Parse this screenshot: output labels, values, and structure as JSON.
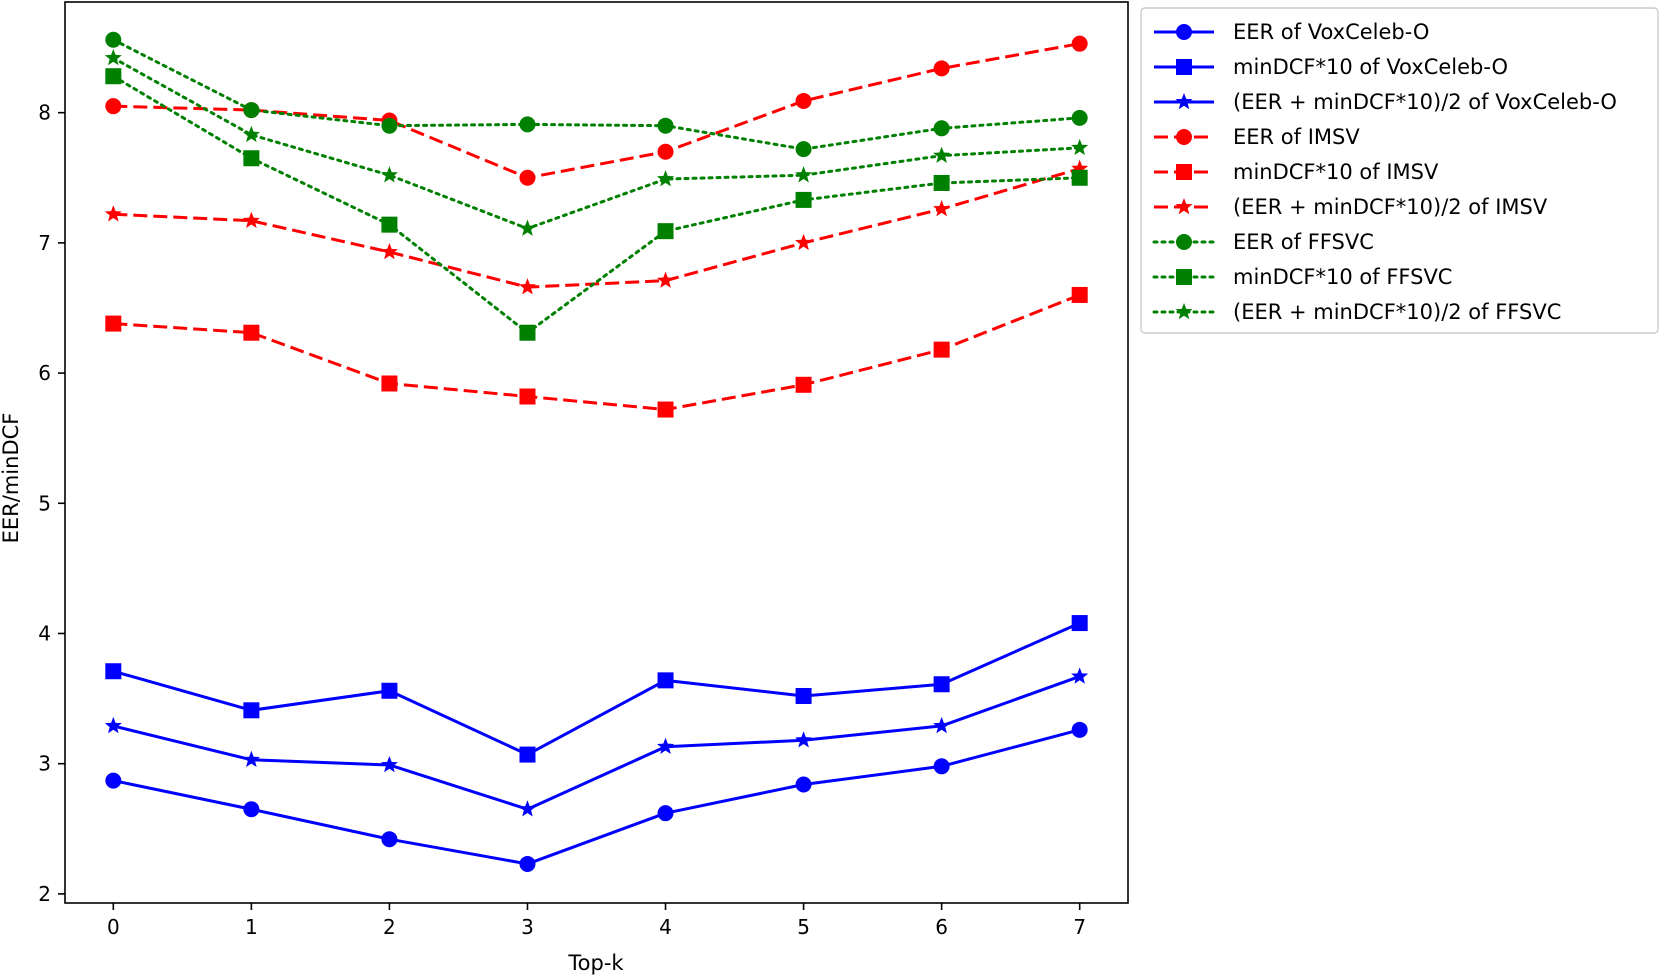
{
  "chart_data": {
    "type": "line",
    "title": "",
    "xlabel": "Top-k",
    "ylabel": "EER/minDCF",
    "x": [
      0,
      1,
      2,
      3,
      4,
      5,
      6,
      7
    ],
    "xlim": [
      -0.35,
      7.35
    ],
    "ylim": [
      1.93,
      8.85
    ],
    "xticks": [
      "0",
      "1",
      "2",
      "3",
      "4",
      "5",
      "6",
      "7"
    ],
    "yticks": [
      2,
      3,
      4,
      5,
      6,
      7,
      8
    ],
    "legend_position": "outside-top-right",
    "series": [
      {
        "name": "EER of VoxCeleb-O",
        "color": "#0000ff",
        "linestyle": "solid",
        "marker": "circle",
        "values": [
          2.87,
          2.65,
          2.42,
          2.23,
          2.62,
          2.84,
          2.98,
          3.26
        ]
      },
      {
        "name": "minDCF*10 of VoxCeleb-O",
        "color": "#0000ff",
        "linestyle": "solid",
        "marker": "square",
        "values": [
          3.71,
          3.41,
          3.56,
          3.07,
          3.64,
          3.52,
          3.61,
          4.08
        ]
      },
      {
        "name": "(EER + minDCF*10)/2 of VoxCeleb-O",
        "color": "#0000ff",
        "linestyle": "solid",
        "marker": "star",
        "values": [
          3.29,
          3.03,
          2.99,
          2.65,
          3.13,
          3.18,
          3.29,
          3.67
        ]
      },
      {
        "name": "EER of IMSV",
        "color": "#ff0000",
        "linestyle": "dashed",
        "marker": "circle",
        "values": [
          8.05,
          8.02,
          7.94,
          7.5,
          7.7,
          8.09,
          8.34,
          8.53
        ]
      },
      {
        "name": "minDCF*10 of IMSV",
        "color": "#ff0000",
        "linestyle": "dashed",
        "marker": "square",
        "values": [
          6.38,
          6.31,
          5.92,
          5.82,
          5.72,
          5.91,
          6.18,
          6.6
        ]
      },
      {
        "name": "(EER + minDCF*10)/2 of IMSV",
        "color": "#ff0000",
        "linestyle": "dashed",
        "marker": "star",
        "values": [
          7.22,
          7.17,
          6.93,
          6.66,
          6.71,
          7.0,
          7.26,
          7.57
        ]
      },
      {
        "name": "EER of FFSVC",
        "color": "#008000",
        "linestyle": "dotted",
        "marker": "circle",
        "values": [
          8.56,
          8.02,
          7.9,
          7.91,
          7.9,
          7.72,
          7.88,
          7.96
        ]
      },
      {
        "name": "minDCF*10 of FFSVC",
        "color": "#008000",
        "linestyle": "dotted",
        "marker": "square",
        "values": [
          8.28,
          7.65,
          7.14,
          6.31,
          7.09,
          7.33,
          7.46,
          7.5
        ]
      },
      {
        "name": "(EER + minDCF*10)/2 of FFSVC",
        "color": "#008000",
        "linestyle": "dotted",
        "marker": "star",
        "values": [
          8.42,
          7.83,
          7.52,
          7.11,
          7.49,
          7.52,
          7.67,
          7.73
        ]
      }
    ]
  }
}
